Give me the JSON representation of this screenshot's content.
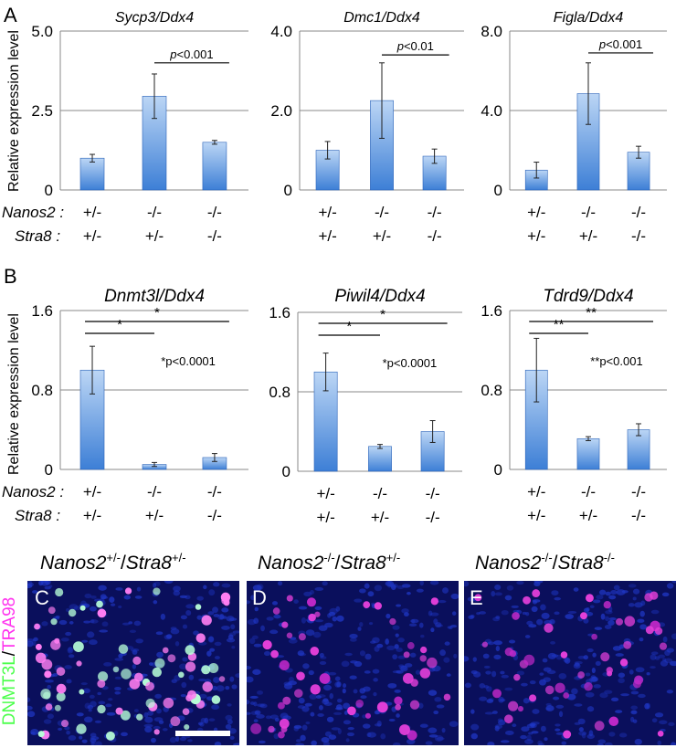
{
  "panel_labels": {
    "A": "A",
    "B": "B",
    "C": "C",
    "D": "D",
    "E": "E"
  },
  "ylabel": "Relative expression level",
  "row_labels": {
    "nanos2": "Nanos2 :",
    "stra8": "Stra8 :"
  },
  "genotypes": {
    "nanos2": [
      "+/-",
      "-/-",
      "-/-"
    ],
    "stra8": [
      "+/-",
      "+/-",
      "-/-"
    ]
  },
  "colors": {
    "bar_top": "#bcd6f5",
    "bar_bottom": "#3d7fd6",
    "bar_edge": "#2a62b8",
    "grid": "#888888"
  },
  "chart_data": [
    {
      "type": "bar",
      "title": "Sycp3/Ddx4",
      "ylim": [
        0,
        5.0
      ],
      "yticks": [
        "0",
        "2.5",
        "5.0"
      ],
      "categories": [
        "+/- ; +/-",
        "-/- ; +/-",
        "-/- ; -/-"
      ],
      "values": [
        1.0,
        2.95,
        1.5
      ],
      "errors": [
        0.12,
        0.7,
        0.06
      ],
      "annotations": [
        {
          "text": "p<0.001",
          "from": 1,
          "to": 2,
          "level": 4.0
        }
      ]
    },
    {
      "type": "bar",
      "title": "Dmc1/Ddx4",
      "ylim": [
        0,
        4.0
      ],
      "yticks": [
        "0",
        "2.0",
        "4.0"
      ],
      "categories": [
        "+/- ; +/-",
        "-/- ; +/-",
        "-/- ; -/-"
      ],
      "values": [
        1.0,
        2.25,
        0.85
      ],
      "errors": [
        0.22,
        0.95,
        0.18
      ],
      "annotations": [
        {
          "text": "p<0.01",
          "from": 1,
          "to": 2,
          "level": 3.4
        }
      ]
    },
    {
      "type": "bar",
      "title": "Figla/Ddx4",
      "ylim": [
        0,
        8.0
      ],
      "yticks": [
        "0",
        "4.0",
        "8.0"
      ],
      "categories": [
        "+/- ; +/-",
        "-/- ; +/-",
        "-/- ; -/-"
      ],
      "values": [
        1.0,
        4.85,
        1.9
      ],
      "errors": [
        0.4,
        1.55,
        0.3
      ],
      "annotations": [
        {
          "text": "p<0.001",
          "from": 1,
          "to": 2,
          "level": 6.9
        }
      ]
    },
    {
      "type": "bar",
      "title": "Dnmt3l/Ddx4",
      "ylim": [
        0,
        1.6
      ],
      "yticks": [
        "0",
        "0.8",
        "1.6"
      ],
      "categories": [
        "+/- ; +/-",
        "-/- ; +/-",
        "-/- ; -/-"
      ],
      "values": [
        1.0,
        0.05,
        0.12
      ],
      "errors": [
        0.24,
        0.02,
        0.04
      ],
      "annotations": [
        {
          "text": "*",
          "from": 0,
          "to": 1,
          "level": 1.37
        },
        {
          "text": "*",
          "from": 0,
          "to": 2,
          "level": 1.49
        }
      ],
      "note": "*p<0.0001"
    },
    {
      "type": "bar",
      "title": "Piwil4/Ddx4",
      "ylim": [
        0,
        1.6
      ],
      "yticks": [
        "0",
        "0.8",
        "1.6"
      ],
      "categories": [
        "+/- ; +/-",
        "-/- ; +/-",
        "-/- ; -/-"
      ],
      "values": [
        1.0,
        0.25,
        0.4
      ],
      "errors": [
        0.19,
        0.02,
        0.11
      ],
      "annotations": [
        {
          "text": "*",
          "from": 0,
          "to": 1,
          "level": 1.37
        },
        {
          "text": "*",
          "from": 0,
          "to": 2,
          "level": 1.49
        }
      ],
      "note": "*p<0.0001"
    },
    {
      "type": "bar",
      "title": "Tdrd9/Ddx4",
      "ylim": [
        0,
        1.6
      ],
      "yticks": [
        "0",
        "0.8",
        "1.6"
      ],
      "categories": [
        "+/- ; +/-",
        "-/- ; +/-",
        "-/- ; -/-"
      ],
      "values": [
        1.0,
        0.31,
        0.4
      ],
      "errors": [
        0.32,
        0.02,
        0.06
      ],
      "annotations": [
        {
          "text": "**",
          "from": 0,
          "to": 1,
          "level": 1.37
        },
        {
          "text": "**",
          "from": 0,
          "to": 2,
          "level": 1.49
        }
      ],
      "note": "**p<0.001"
    }
  ],
  "micrographs": {
    "captions": [
      {
        "gene": "Nanos2",
        "g1": "+/-",
        "mid": "/",
        "gene2": "Stra8",
        "g2": "+/-"
      },
      {
        "gene": "Nanos2",
        "g1": "-/-",
        "mid": "/",
        "gene2": "Stra8",
        "g2": "+/-"
      },
      {
        "gene": "Nanos2",
        "g1": "-/-",
        "mid": "/",
        "gene2": "Stra8",
        "g2": "-/-"
      }
    ],
    "stain_label": {
      "green": "DNMT3L",
      "sep": "/",
      "magenta": "TRA98"
    }
  }
}
